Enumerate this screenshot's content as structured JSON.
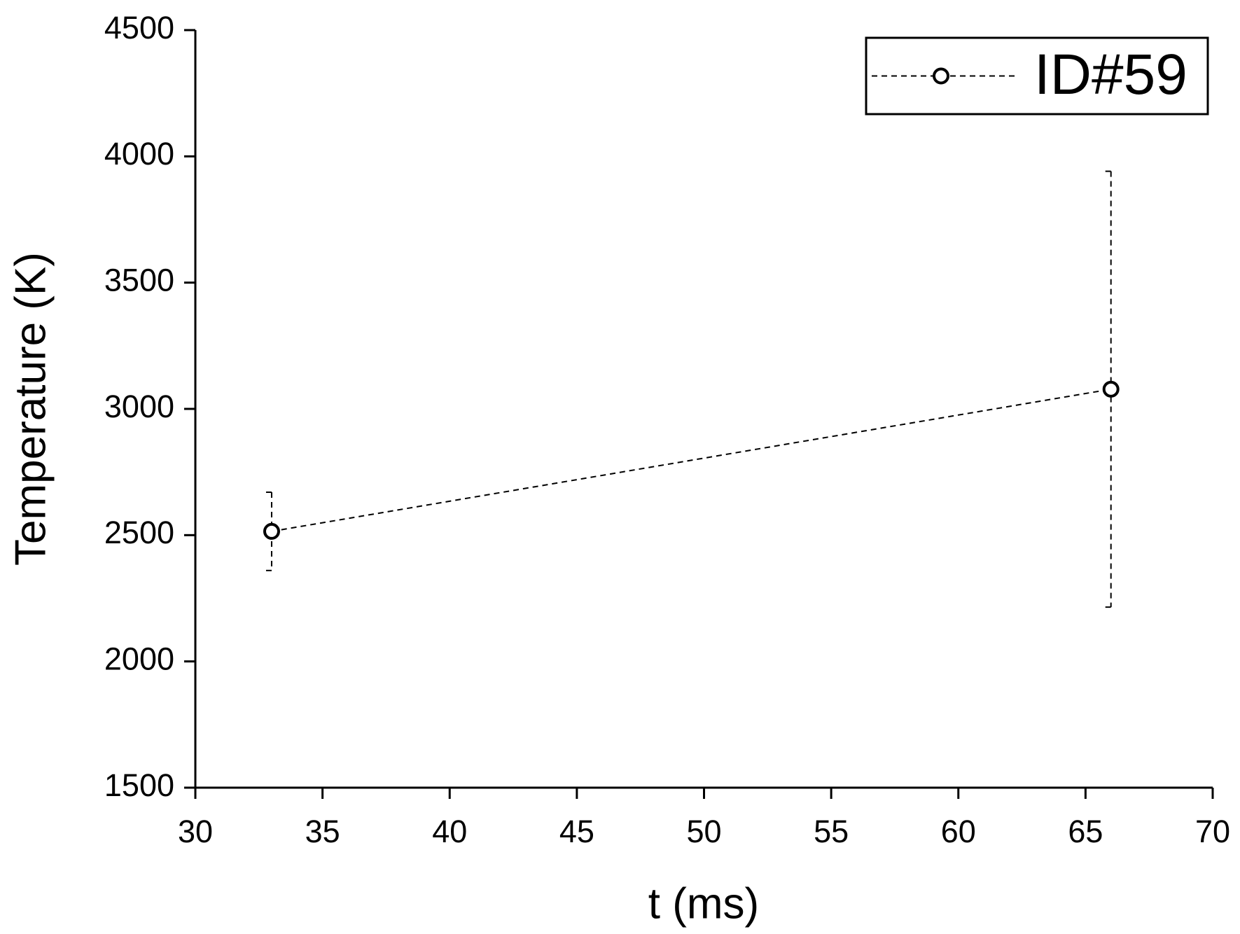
{
  "chart_data": {
    "type": "line",
    "x_label": "t (ms)",
    "y_label": "Temperature (K)",
    "series": [
      {
        "name": "ID#59",
        "color": "#000000",
        "x": [
          33,
          66
        ],
        "values": [
          2515,
          3078
        ],
        "errors": [
          155,
          863
        ]
      }
    ],
    "xlim": [
      30,
      70
    ],
    "xticks": [
      30,
      35,
      40,
      45,
      50,
      55,
      60,
      65,
      70
    ],
    "ylim": [
      1500,
      4500
    ],
    "yticks": [
      1500,
      2000,
      2500,
      3000,
      3500,
      4000,
      4500
    ],
    "legend": "upper right"
  }
}
